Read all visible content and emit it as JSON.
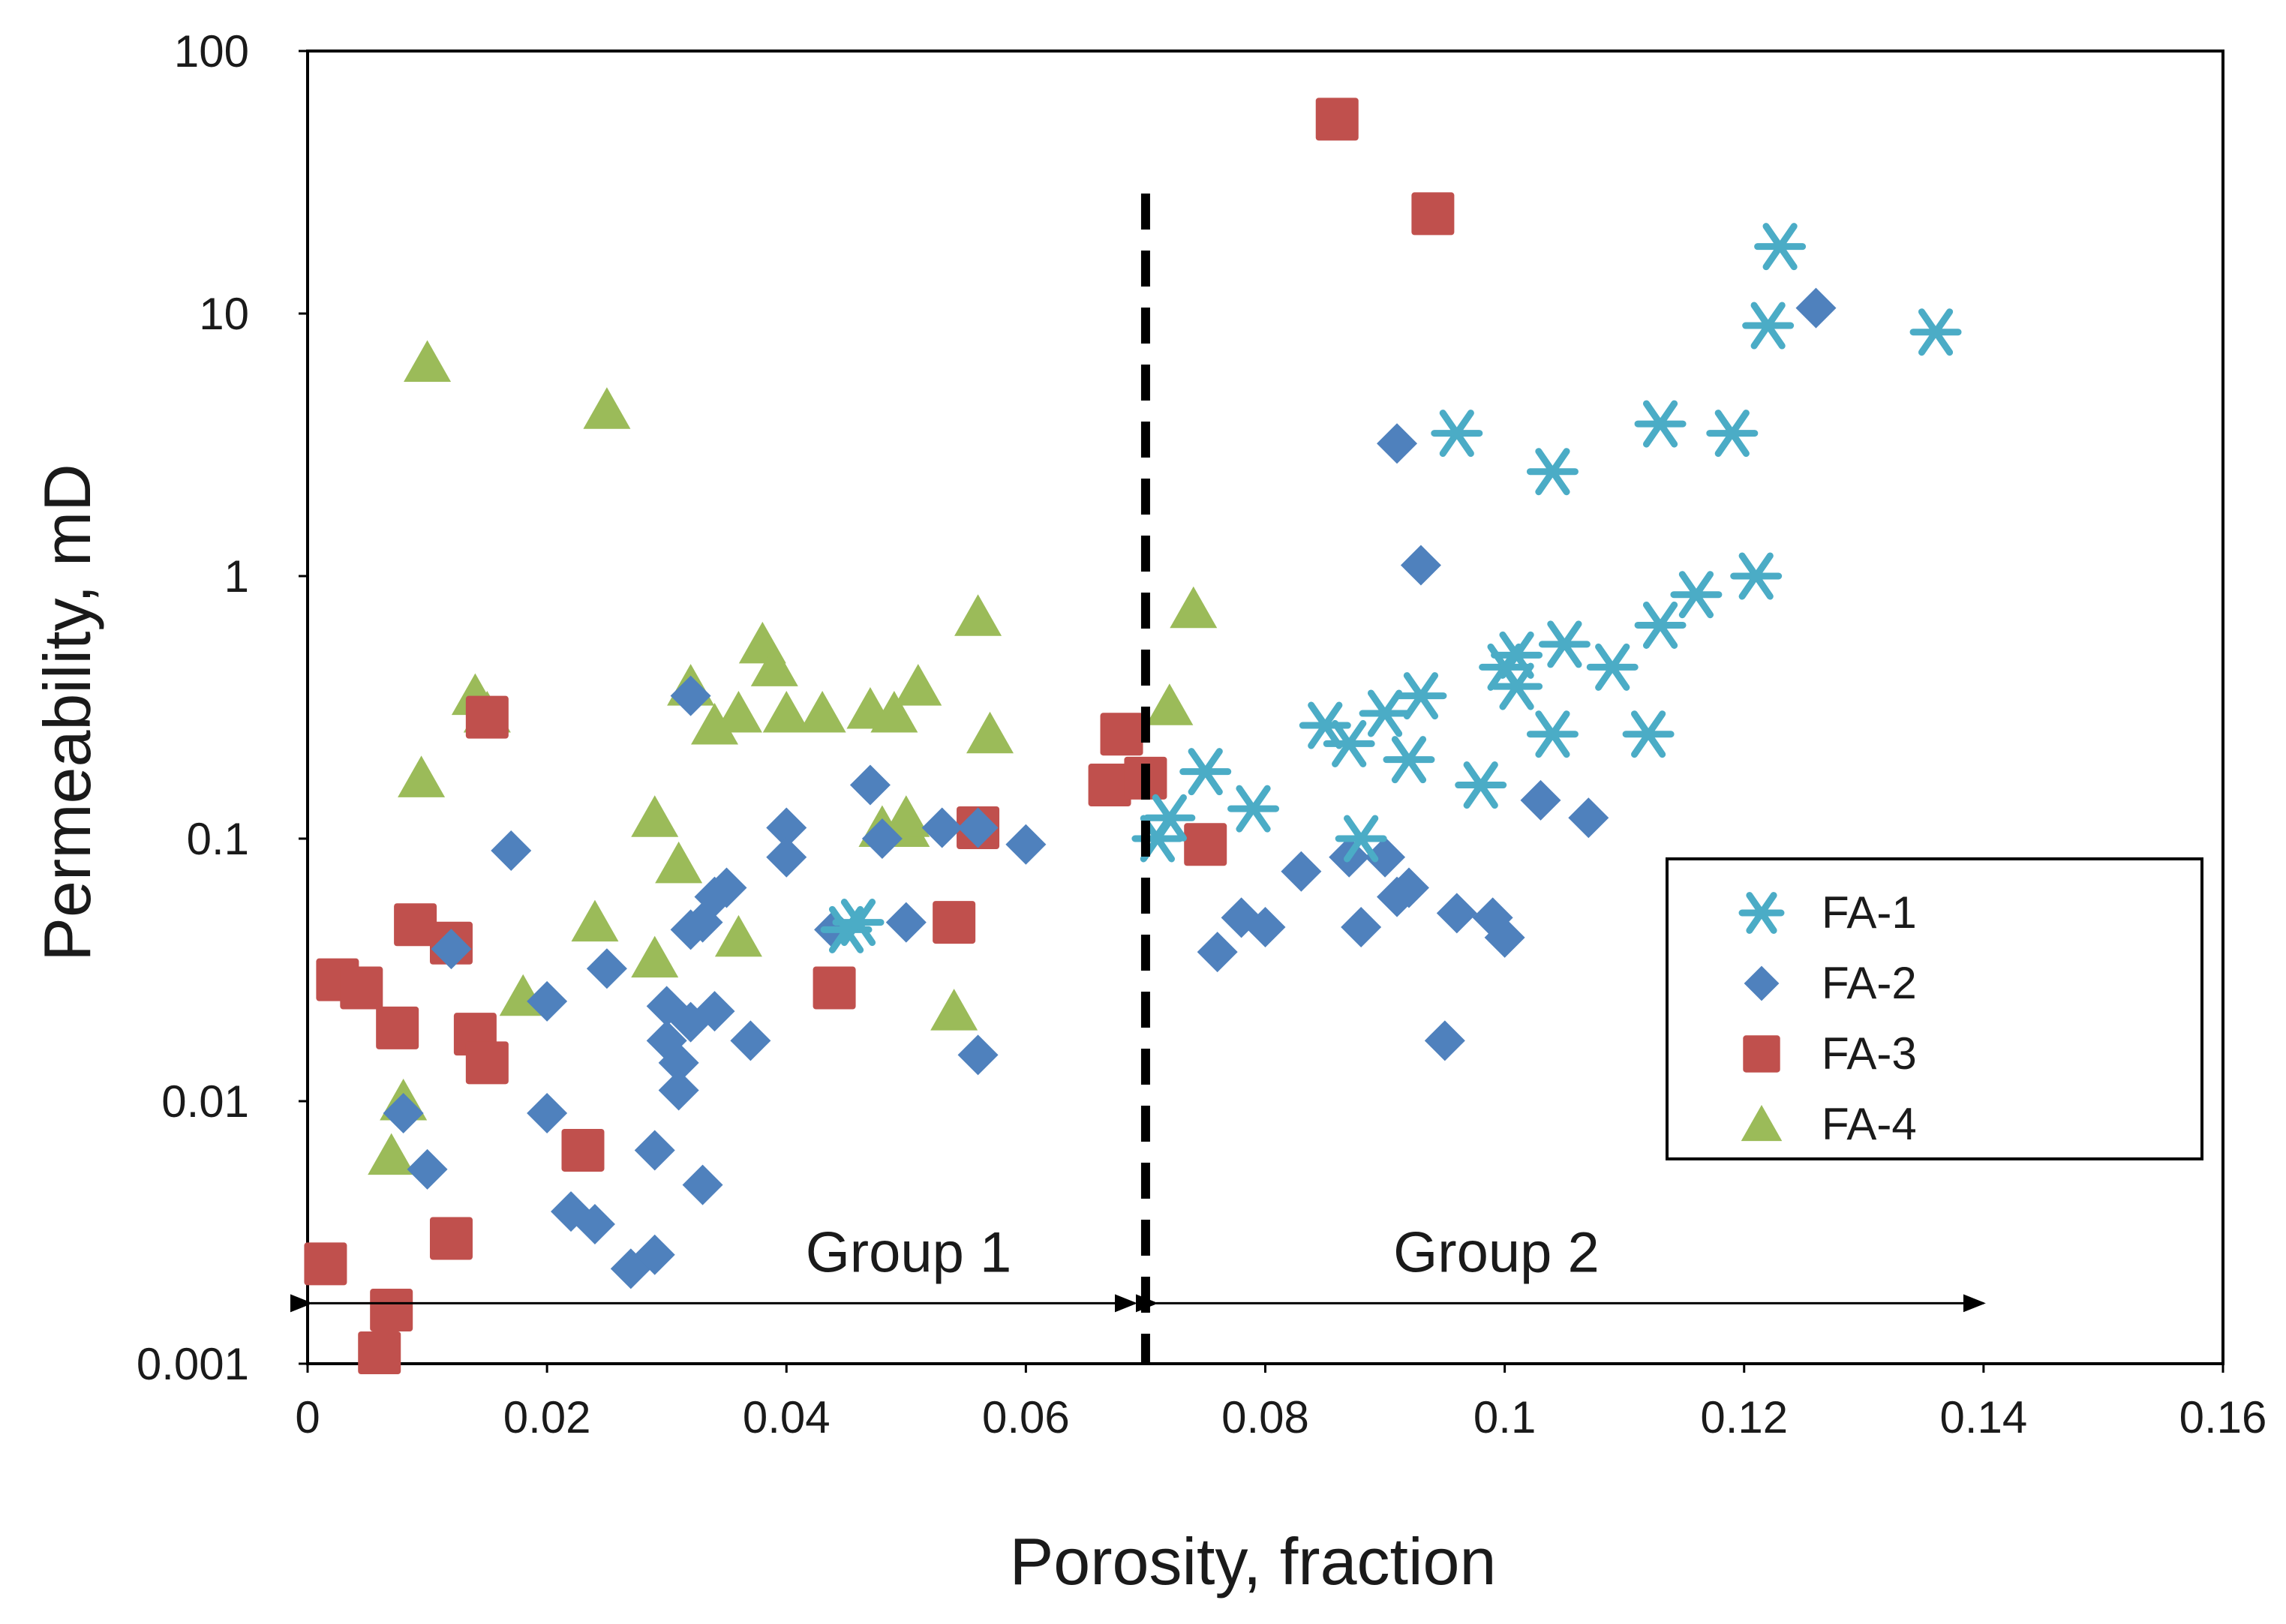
{
  "chart_data": {
    "type": "scatter",
    "title": "",
    "xlabel": "Porosity, fraction",
    "ylabel": "Permeability, mD",
    "xlim": [
      0,
      0.16
    ],
    "ylim": [
      0.001,
      100
    ],
    "yscale": "log",
    "grid": false,
    "legend_position": "lower-right",
    "x_ticks": [
      {
        "value": 0,
        "label": "0"
      },
      {
        "value": 0.02,
        "label": "0.02"
      },
      {
        "value": 0.04,
        "label": "0.04"
      },
      {
        "value": 0.06,
        "label": "0.06"
      },
      {
        "value": 0.08,
        "label": "0.08"
      },
      {
        "value": 0.1,
        "label": "0.1"
      },
      {
        "value": 0.12,
        "label": "0.12"
      },
      {
        "value": 0.14,
        "label": "0.14"
      },
      {
        "value": 0.16,
        "label": "0.16"
      }
    ],
    "y_ticks": [
      {
        "value": 0.001,
        "label": "0.001"
      },
      {
        "value": 0.01,
        "label": "0.01"
      },
      {
        "value": 0.1,
        "label": "0.1"
      },
      {
        "value": 1,
        "label": "1"
      },
      {
        "value": 10,
        "label": "10"
      },
      {
        "value": 100,
        "label": "100"
      }
    ],
    "series": [
      {
        "name": "FA-1",
        "marker": "star",
        "color": "#4bacc6",
        "points": [
          [
            0.045,
            0.045
          ],
          [
            0.046,
            0.048
          ],
          [
            0.071,
            0.1
          ],
          [
            0.072,
            0.12
          ],
          [
            0.075,
            0.18
          ],
          [
            0.079,
            0.13
          ],
          [
            0.085,
            0.27
          ],
          [
            0.087,
            0.23
          ],
          [
            0.088,
            0.1
          ],
          [
            0.09,
            0.3
          ],
          [
            0.092,
            0.2
          ],
          [
            0.093,
            0.35
          ],
          [
            0.096,
            3.5
          ],
          [
            0.098,
            0.16
          ],
          [
            0.1,
            0.45
          ],
          [
            0.101,
            0.38
          ],
          [
            0.101,
            0.5
          ],
          [
            0.104,
            0.25
          ],
          [
            0.104,
            2.5
          ],
          [
            0.105,
            0.55
          ],
          [
            0.109,
            0.45
          ],
          [
            0.112,
            0.25
          ],
          [
            0.113,
            0.65
          ],
          [
            0.113,
            3.8
          ],
          [
            0.116,
            0.85
          ],
          [
            0.119,
            3.5
          ],
          [
            0.121,
            1.0
          ],
          [
            0.122,
            9.0
          ],
          [
            0.123,
            18.0
          ],
          [
            0.136,
            8.5
          ]
        ]
      },
      {
        "name": "FA-2",
        "marker": "diamond",
        "color": "#4f81bd",
        "points": [
          [
            0.008,
            0.009
          ],
          [
            0.01,
            0.0055
          ],
          [
            0.012,
            0.038
          ],
          [
            0.017,
            0.09
          ],
          [
            0.02,
            0.024
          ],
          [
            0.02,
            0.009
          ],
          [
            0.022,
            0.0038
          ],
          [
            0.024,
            0.0034
          ],
          [
            0.025,
            0.032
          ],
          [
            0.027,
            0.0023
          ],
          [
            0.029,
            0.0026
          ],
          [
            0.029,
            0.0065
          ],
          [
            0.03,
            0.023
          ],
          [
            0.03,
            0.017
          ],
          [
            0.031,
            0.014
          ],
          [
            0.031,
            0.011
          ],
          [
            0.032,
            0.02
          ],
          [
            0.032,
            0.045
          ],
          [
            0.033,
            0.048
          ],
          [
            0.033,
            0.0048
          ],
          [
            0.034,
            0.022
          ],
          [
            0.034,
            0.06
          ],
          [
            0.035,
            0.065
          ],
          [
            0.037,
            0.017
          ],
          [
            0.032,
            0.35
          ],
          [
            0.04,
            0.11
          ],
          [
            0.04,
            0.085
          ],
          [
            0.044,
            0.045
          ],
          [
            0.047,
            0.16
          ],
          [
            0.048,
            0.1
          ],
          [
            0.05,
            0.048
          ],
          [
            0.053,
            0.11
          ],
          [
            0.056,
            0.11
          ],
          [
            0.056,
            0.015
          ],
          [
            0.06,
            0.095
          ],
          [
            0.076,
            0.037
          ],
          [
            0.078,
            0.05
          ],
          [
            0.08,
            0.046
          ],
          [
            0.083,
            0.075
          ],
          [
            0.087,
            0.085
          ],
          [
            0.088,
            0.046
          ],
          [
            0.09,
            0.085
          ],
          [
            0.091,
            0.06
          ],
          [
            0.092,
            0.065
          ],
          [
            0.091,
            3.2
          ],
          [
            0.093,
            1.1
          ],
          [
            0.095,
            0.017
          ],
          [
            0.096,
            0.052
          ],
          [
            0.099,
            0.05
          ],
          [
            0.1,
            0.042
          ],
          [
            0.103,
            0.14
          ],
          [
            0.107,
            0.12
          ],
          [
            0.126,
            10.5
          ]
        ]
      },
      {
        "name": "FA-3",
        "marker": "square",
        "color": "#c0504d",
        "points": [
          [
            0.0015,
            0.0024
          ],
          [
            0.0025,
            0.029
          ],
          [
            0.0045,
            0.027
          ],
          [
            0.006,
            0.0011
          ],
          [
            0.007,
            0.0016
          ],
          [
            0.0075,
            0.019
          ],
          [
            0.009,
            0.047
          ],
          [
            0.012,
            0.04
          ],
          [
            0.012,
            0.003
          ],
          [
            0.014,
            0.018
          ],
          [
            0.015,
            0.014
          ],
          [
            0.015,
            0.29
          ],
          [
            0.023,
            0.0065
          ],
          [
            0.044,
            0.027
          ],
          [
            0.054,
            0.048
          ],
          [
            0.056,
            0.11
          ],
          [
            0.067,
            0.16
          ],
          [
            0.068,
            0.25
          ],
          [
            0.07,
            0.17
          ],
          [
            0.075,
            0.095
          ],
          [
            0.086,
            55.0
          ],
          [
            0.094,
            24.0
          ]
        ]
      },
      {
        "name": "FA-4",
        "marker": "triangle",
        "color": "#9bbb59",
        "points": [
          [
            0.007,
            0.0062
          ],
          [
            0.008,
            0.01
          ],
          [
            0.0095,
            0.17
          ],
          [
            0.01,
            6.5
          ],
          [
            0.014,
            0.35
          ],
          [
            0.015,
            0.3
          ],
          [
            0.018,
            0.025
          ],
          [
            0.024,
            0.048
          ],
          [
            0.025,
            4.3
          ],
          [
            0.029,
            0.035
          ],
          [
            0.029,
            0.12
          ],
          [
            0.031,
            0.08
          ],
          [
            0.032,
            0.38
          ],
          [
            0.034,
            0.27
          ],
          [
            0.036,
            0.3
          ],
          [
            0.036,
            0.042
          ],
          [
            0.038,
            0.55
          ],
          [
            0.039,
            0.45
          ],
          [
            0.04,
            0.3
          ],
          [
            0.043,
            0.3
          ],
          [
            0.047,
            0.31
          ],
          [
            0.048,
            0.11
          ],
          [
            0.049,
            0.3
          ],
          [
            0.05,
            0.11
          ],
          [
            0.05,
            0.12
          ],
          [
            0.051,
            0.38
          ],
          [
            0.054,
            0.022
          ],
          [
            0.056,
            0.7
          ],
          [
            0.057,
            0.25
          ],
          [
            0.072,
            0.32
          ],
          [
            0.074,
            0.75
          ]
        ]
      }
    ],
    "annotations": {
      "divider_x": 0.07,
      "group1": {
        "label": "Group 1",
        "x_from": 0,
        "x_to": 0.07,
        "arrow_y": 0.0017
      },
      "group2": {
        "label": "Group 2",
        "x_from": 0.07,
        "x_to": 0.14,
        "arrow_y": 0.0017
      }
    }
  }
}
